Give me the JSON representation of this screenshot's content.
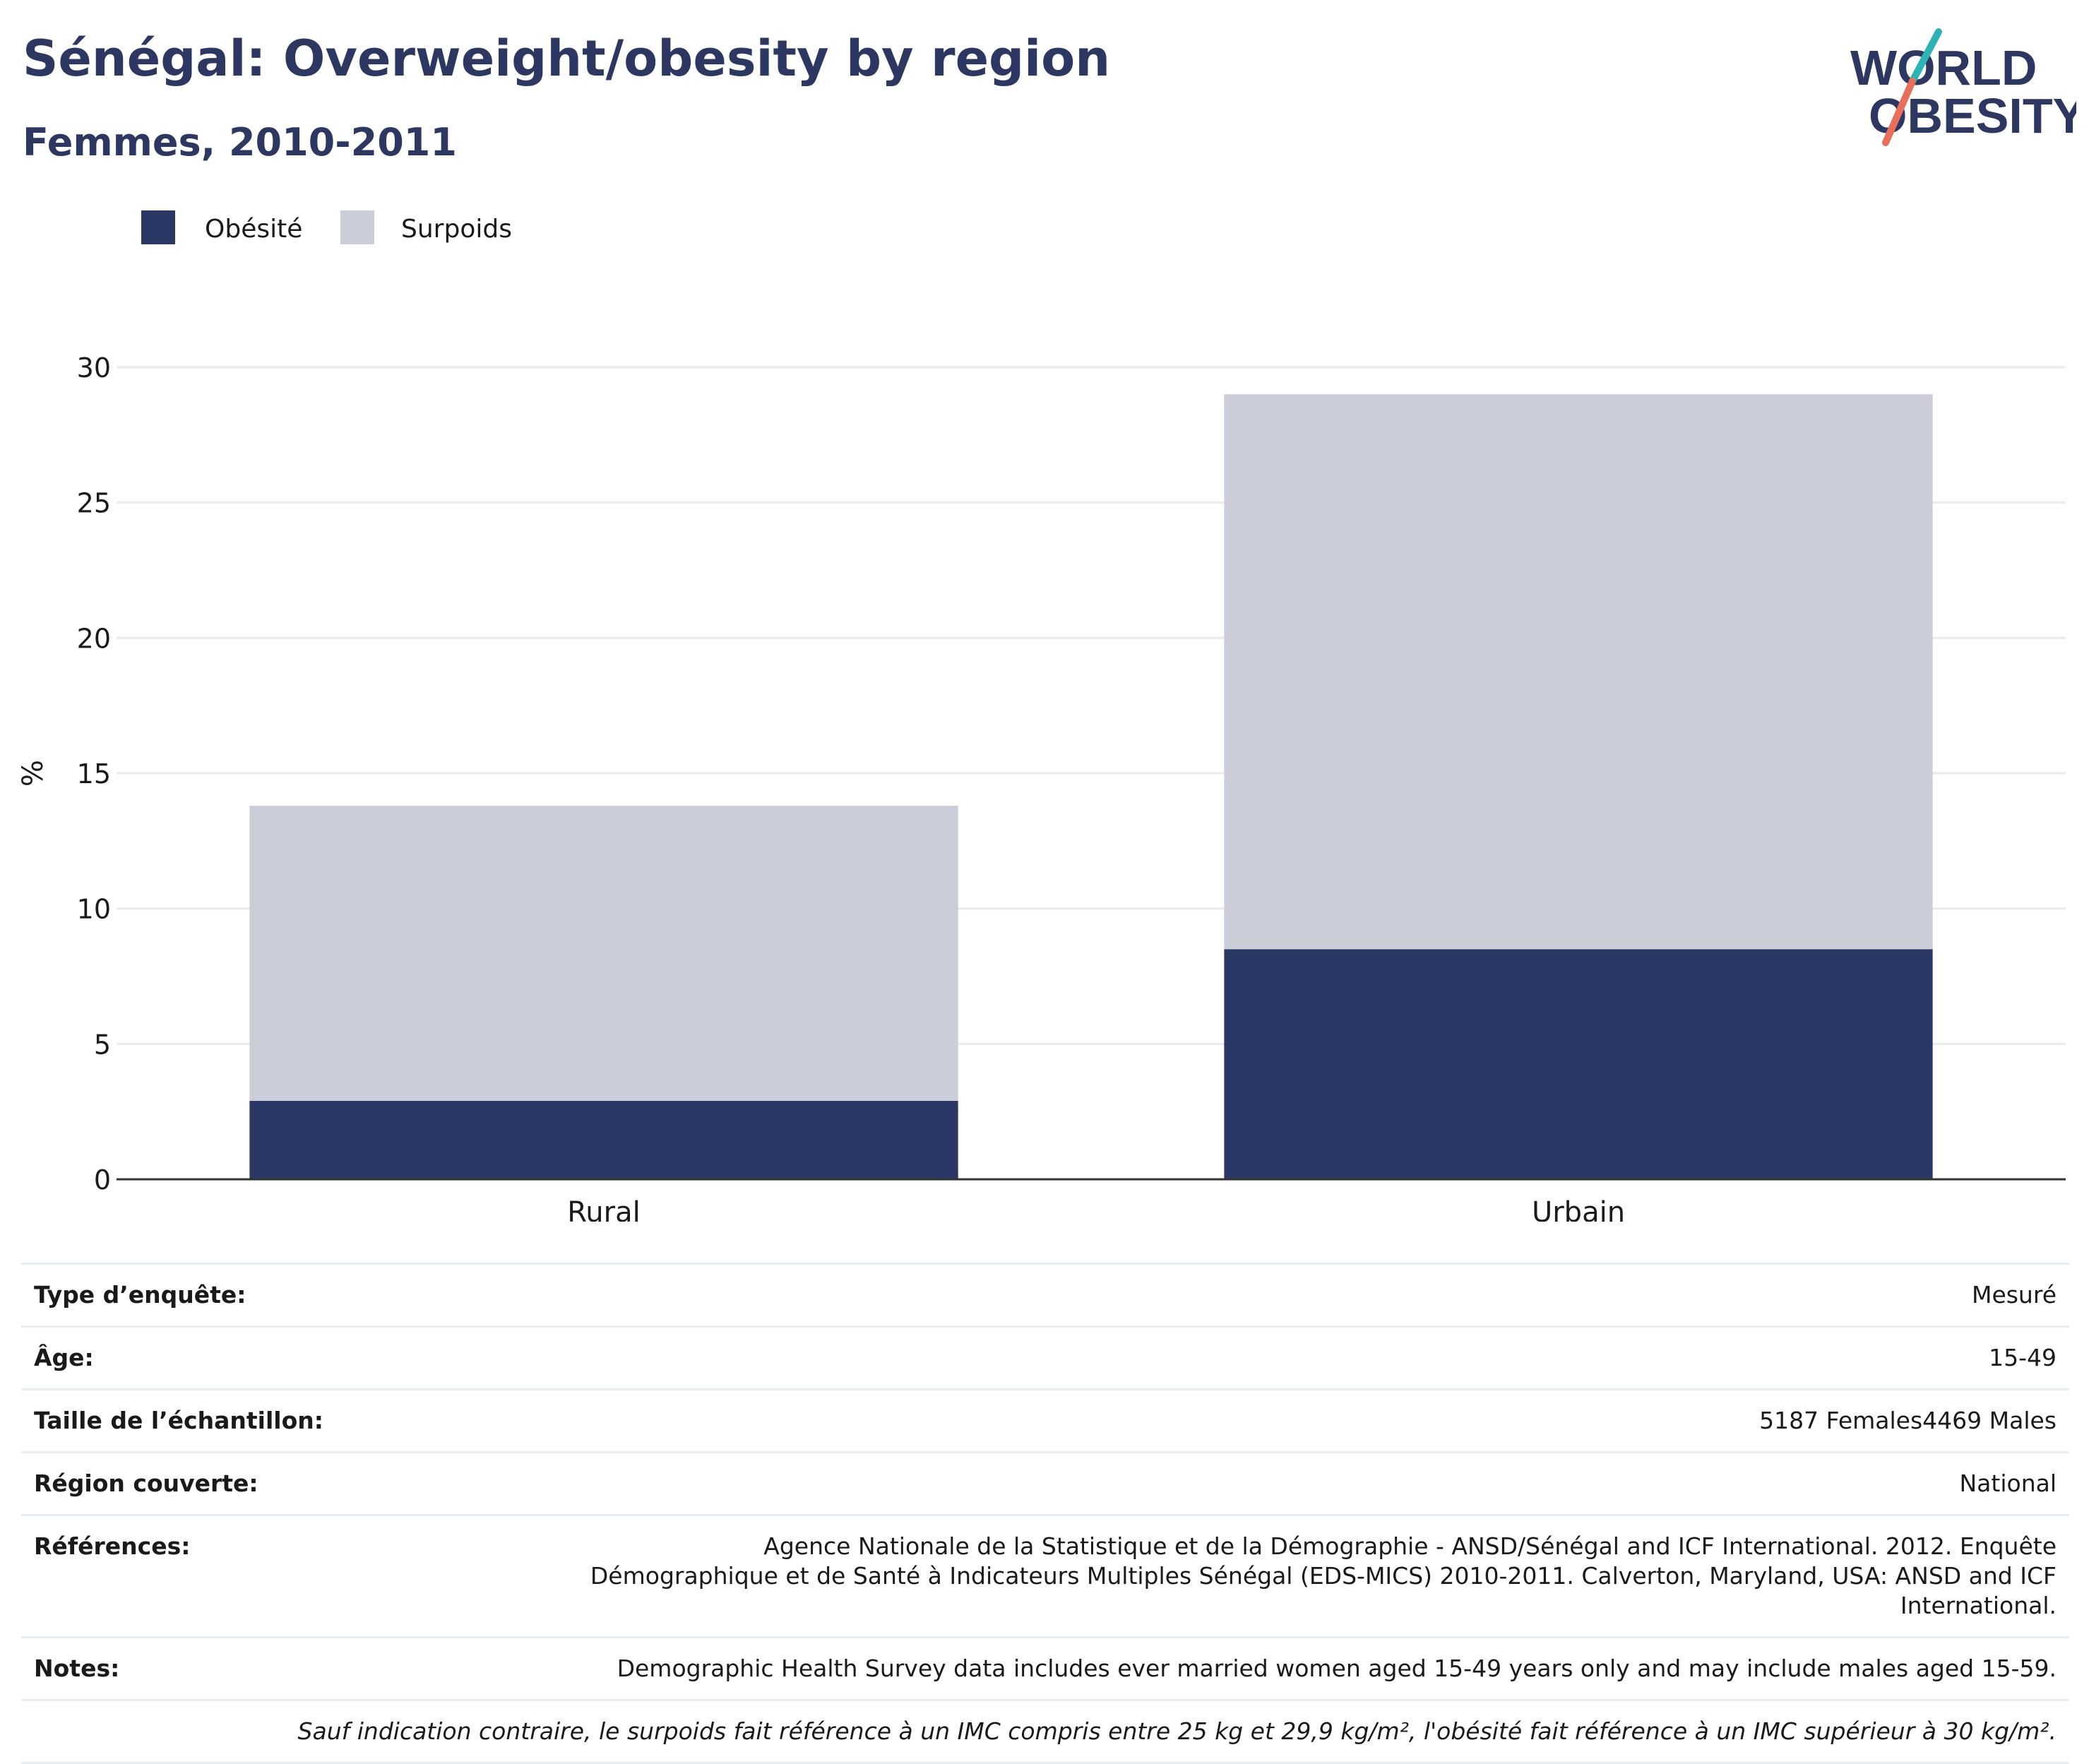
{
  "header": {
    "title": "Sénégal: Overweight/obesity by region",
    "subtitle": "Femmes, 2010-2011"
  },
  "logo": {
    "line1": "WORLD",
    "line2": "OBESITY"
  },
  "colors": {
    "obesity": "#2b3764",
    "overweight": "#cbcdd8",
    "brand": "#2c3862",
    "logo_teal": "#2db3b5",
    "logo_coral": "#e8705a",
    "grid": "#e8eaee",
    "axis": "#333333"
  },
  "chart_data": {
    "type": "bar",
    "stacked": true,
    "categories": [
      "Rural",
      "Urbain"
    ],
    "series": [
      {
        "name": "Obésité",
        "values": [
          2.9,
          8.5
        ]
      },
      {
        "name": "Surpoids",
        "values": [
          10.9,
          20.5
        ]
      }
    ],
    "ylabel": "%",
    "ylim": [
      0,
      30
    ],
    "yticks": [
      0,
      5,
      10,
      15,
      20,
      25,
      30
    ],
    "grid": true,
    "legend": "top-left"
  },
  "meta": {
    "rows": [
      {
        "label": "Type d’enquête:",
        "value": "Mesuré"
      },
      {
        "label": "Âge:",
        "value": "15-49"
      },
      {
        "label": "Taille de l’échantillon:",
        "value": "5187 Females4469 Males"
      },
      {
        "label": "Région couverte:",
        "value": "National"
      },
      {
        "label": "Références:",
        "value": "Agence Nationale de la Statistique et de la Démographie - ANSD/Sénégal and ICF International. 2012. Enquête Démographique et de Santé à Indicateurs Multiples Sénégal (EDS-MICS) 2010-2011. Calverton, Maryland, USA: ANSD and ICF International."
      },
      {
        "label": "Notes:",
        "value": "Demographic Health Survey data includes ever married women aged 15-49 years only and may include males aged 15-59."
      }
    ],
    "footnote": "Sauf indication contraire, le surpoids fait référence à un IMC compris entre 25 kg et 29,9 kg/m², l'obésité fait référence à un IMC supérieur à 30 kg/m²."
  }
}
